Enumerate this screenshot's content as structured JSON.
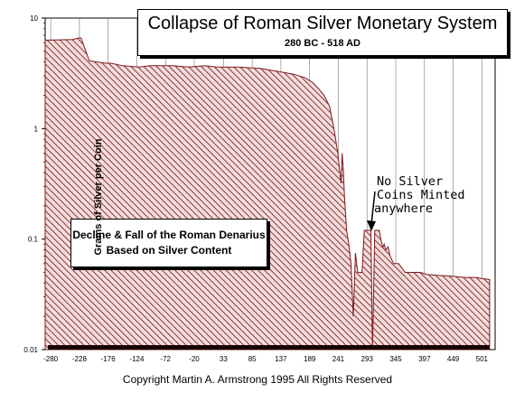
{
  "chart_data": {
    "type": "area",
    "title": "Collapse of Roman Silver Monetary System",
    "subtitle": "280 BC - 518 AD",
    "ylabel": "Grams of Silver per Coin",
    "yscale": "log",
    "ylim": [
      0.01,
      10
    ],
    "xlim": [
      -290,
      525
    ],
    "x_ticks": [
      "-280",
      "-228",
      "-176",
      "-124",
      "-72",
      "-20",
      "33",
      "85",
      "137",
      "189",
      "241",
      "293",
      "345",
      "397",
      "449",
      "501"
    ],
    "y_ticks": [
      "0.01",
      "0.1",
      "1",
      "10"
    ],
    "grid": "vertical",
    "fill_color": "#7a1a1a",
    "series": [
      {
        "values_x": [
          -290,
          -240,
          -230,
          -225,
          -210,
          -180,
          -170,
          -150,
          -120,
          -100,
          -60,
          -30,
          0,
          20,
          60,
          100,
          130,
          160,
          180,
          195,
          205,
          215,
          225,
          233,
          240,
          246,
          248,
          250,
          252,
          256,
          260,
          264,
          268,
          272,
          276,
          282,
          284,
          288,
          292,
          296,
          300,
          303,
          307,
          311,
          315,
          318,
          320,
          322,
          324,
          327,
          331,
          335,
          338,
          341,
          346,
          350,
          356,
          362,
          370,
          390,
          400,
          420,
          450,
          470,
          490,
          500,
          515
        ],
        "values_y": [
          6.3,
          6.4,
          6.6,
          6.6,
          4.1,
          3.9,
          3.9,
          3.7,
          3.6,
          3.7,
          3.7,
          3.6,
          3.7,
          3.6,
          3.6,
          3.5,
          3.3,
          3.1,
          2.9,
          2.6,
          2.3,
          2.0,
          1.6,
          1.0,
          0.6,
          0.32,
          0.6,
          0.42,
          0.25,
          0.12,
          0.09,
          0.06,
          0.02,
          0.075,
          0.05,
          0.05,
          0.05,
          0.12,
          0.12,
          0.12,
          0.12,
          0.01,
          0.12,
          0.12,
          0.12,
          0.1,
          0.09,
          0.085,
          0.09,
          0.08,
          0.085,
          0.07,
          0.065,
          0.06,
          0.06,
          0.06,
          0.055,
          0.05,
          0.05,
          0.05,
          0.048,
          0.047,
          0.046,
          0.045,
          0.045,
          0.044,
          0.043
        ]
      }
    ],
    "annotations": [
      {
        "lines": [
          "Decline & Fall of the Roman Denarius",
          "Based on Silver Content"
        ]
      },
      {
        "lines": [
          "No Silver",
          "Coins Minted",
          "anywhere"
        ]
      }
    ],
    "footer": "Copyright Martin A. Armstrong 1995 All Rights Reserved"
  }
}
